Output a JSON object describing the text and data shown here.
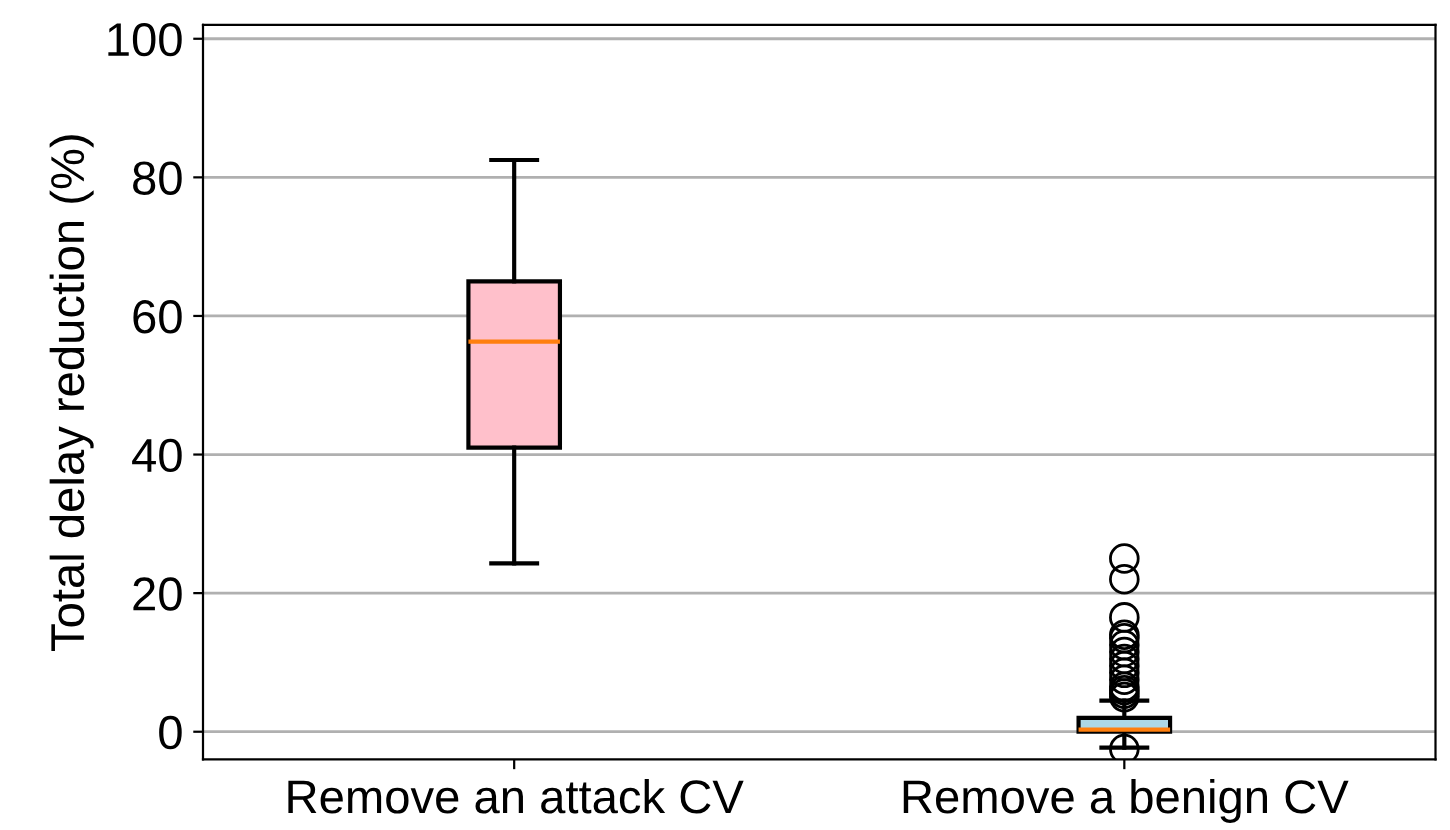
{
  "chart_data": {
    "type": "box",
    "ylabel": "Total delay reduction (%)",
    "categories": [
      "Remove an attack CV",
      "Remove a benign CV"
    ],
    "boxes": [
      {
        "low": 24.3,
        "q1": 41,
        "median": 56.3,
        "q3": 65,
        "high": 82.5
      },
      {
        "low": -2.3,
        "q1": 0,
        "median": 0.3,
        "q3": 2,
        "high": 4.5,
        "outliers": [
          25,
          22,
          16.5,
          14,
          13.5,
          12.5,
          11.5,
          10.5,
          9.5,
          8.5,
          7.5,
          6.5,
          6,
          5.5,
          5,
          -2.5
        ]
      }
    ],
    "colors": [
      "#ffc0cb",
      "#add8e6"
    ],
    "ylim": [
      -4,
      102
    ],
    "yticks": [
      0,
      20,
      40,
      60,
      80,
      100
    ],
    "grid": "y"
  }
}
